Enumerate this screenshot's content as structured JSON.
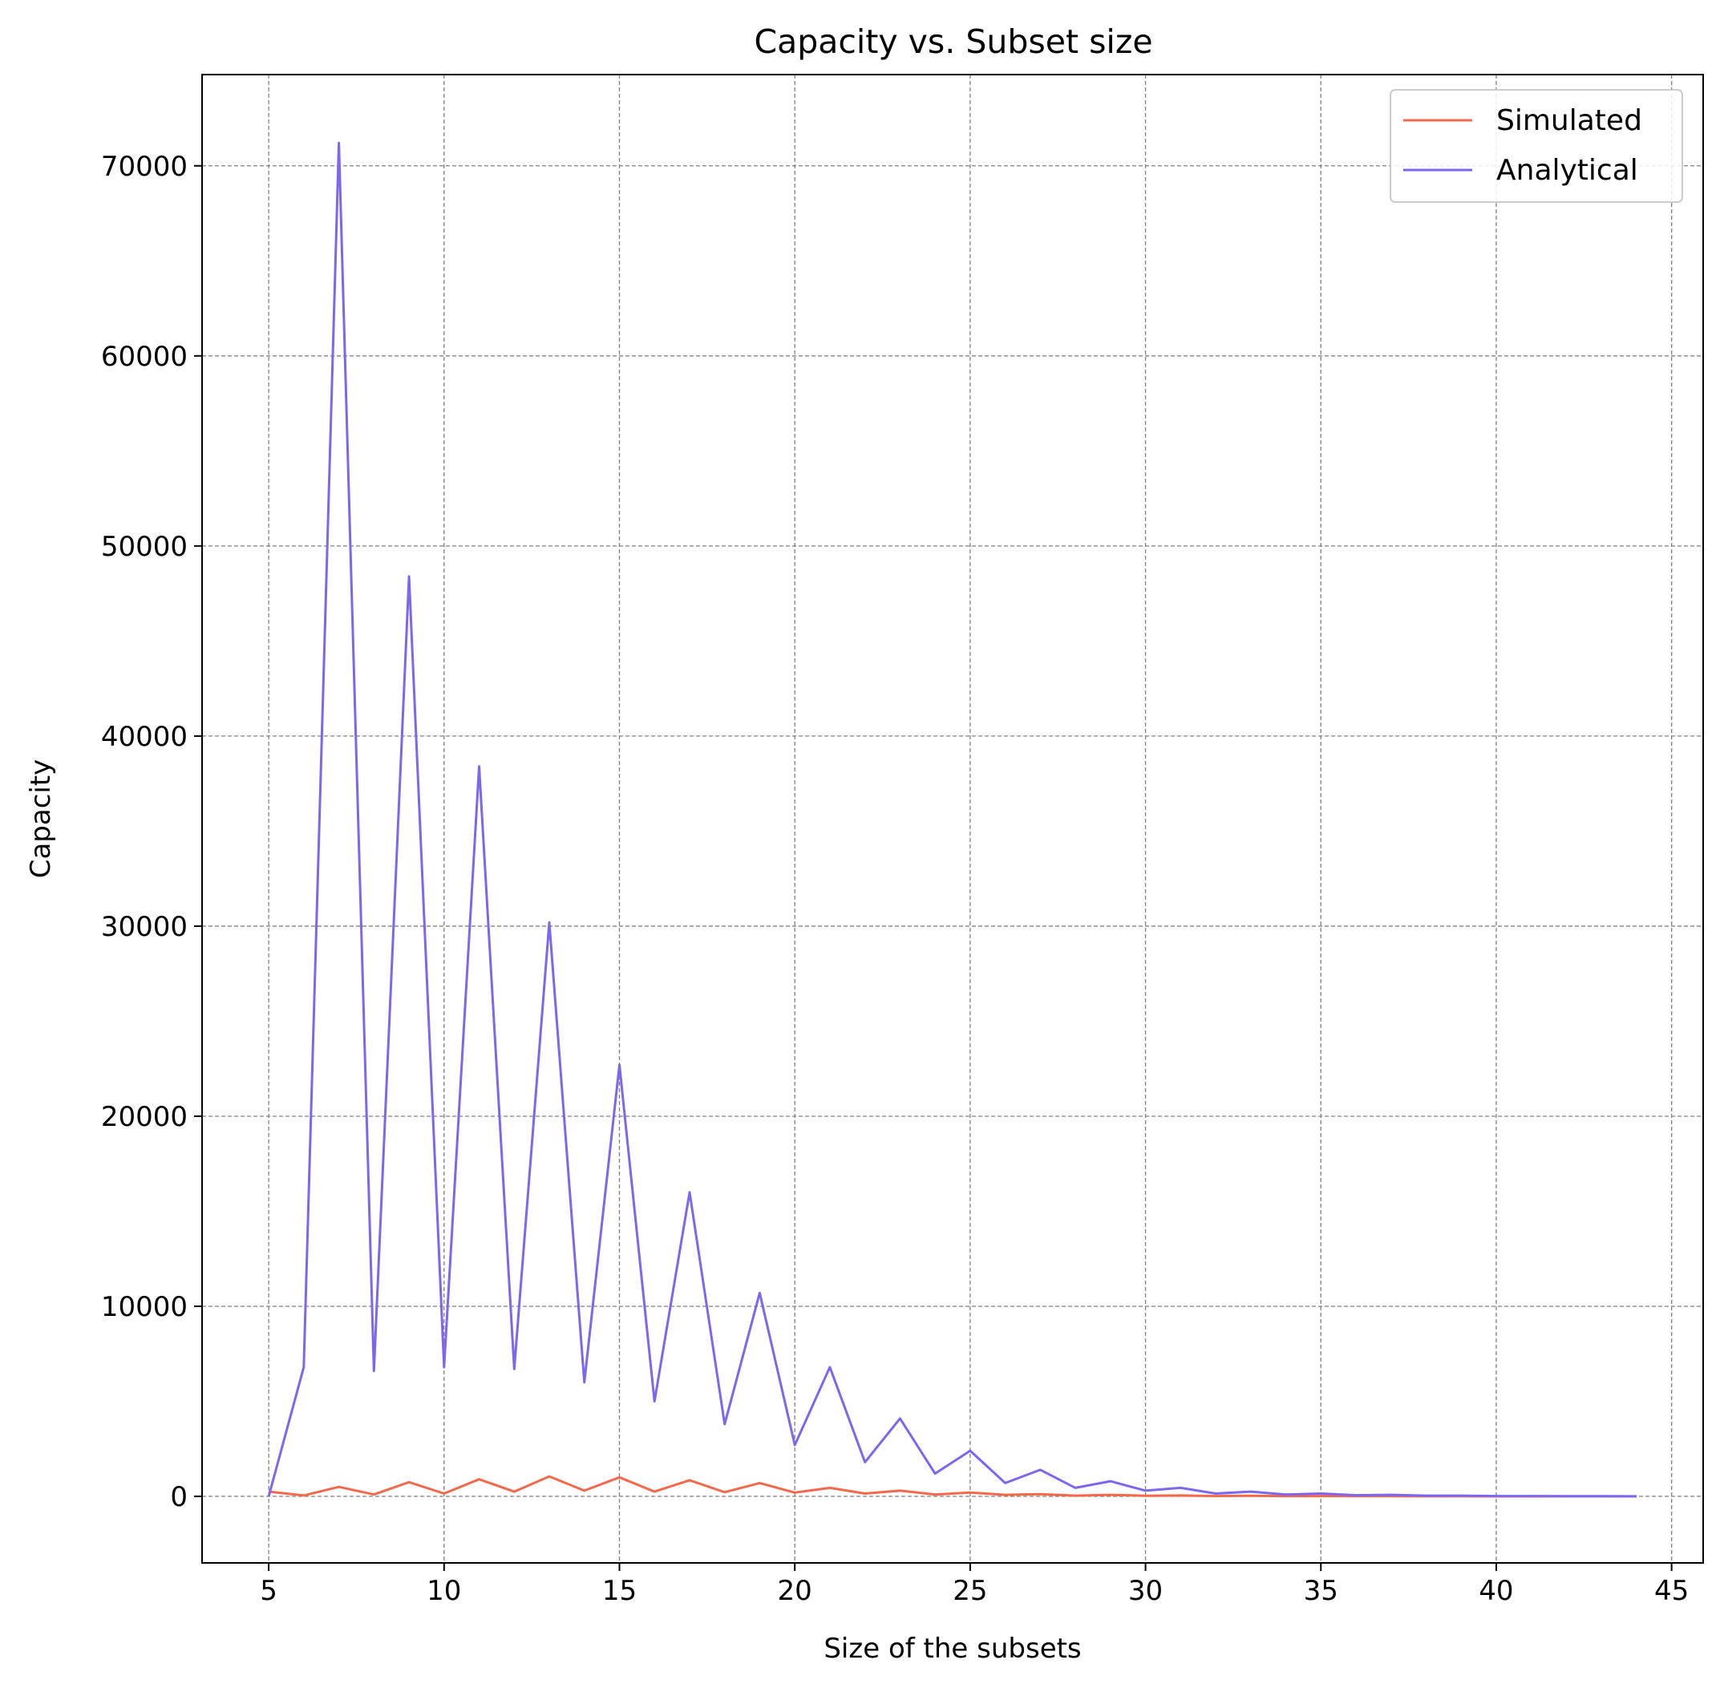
{
  "chart_data": {
    "type": "line",
    "title": "Capacity vs. Subset size",
    "xlabel": "Size of the subsets",
    "ylabel": "Capacity",
    "xlim": [
      3.1,
      45.9
    ],
    "ylim": [
      -3500,
      74800
    ],
    "xticks": [
      5,
      10,
      15,
      20,
      25,
      30,
      35,
      40,
      45
    ],
    "yticks": [
      0,
      10000,
      20000,
      30000,
      40000,
      50000,
      60000,
      70000
    ],
    "grid": true,
    "legend_position": "top-right",
    "x": [
      5,
      6,
      7,
      8,
      9,
      10,
      11,
      12,
      13,
      14,
      15,
      16,
      17,
      18,
      19,
      20,
      21,
      22,
      23,
      24,
      25,
      26,
      27,
      28,
      29,
      30,
      31,
      32,
      33,
      34,
      35,
      36,
      37,
      38,
      39,
      40,
      41,
      42,
      43,
      44
    ],
    "series": [
      {
        "name": "Simulated",
        "color": "#f4694b",
        "values": [
          250,
          50,
          500,
          100,
          750,
          150,
          900,
          250,
          1050,
          300,
          1000,
          250,
          850,
          220,
          700,
          200,
          450,
          150,
          300,
          100,
          200,
          80,
          120,
          40,
          80,
          30,
          50,
          20,
          30,
          15,
          20,
          10,
          10,
          5,
          5,
          3,
          2,
          1,
          1,
          0
        ]
      },
      {
        "name": "Analytical",
        "color": "#7b68ee",
        "values": [
          0,
          6800,
          71200,
          6600,
          48400,
          6800,
          38400,
          6700,
          30200,
          6000,
          22700,
          5000,
          16000,
          3800,
          10700,
          2700,
          6800,
          1800,
          4100,
          1200,
          2400,
          700,
          1400,
          450,
          800,
          300,
          450,
          150,
          250,
          100,
          150,
          60,
          80,
          40,
          40,
          20,
          20,
          10,
          10,
          5
        ]
      }
    ]
  }
}
